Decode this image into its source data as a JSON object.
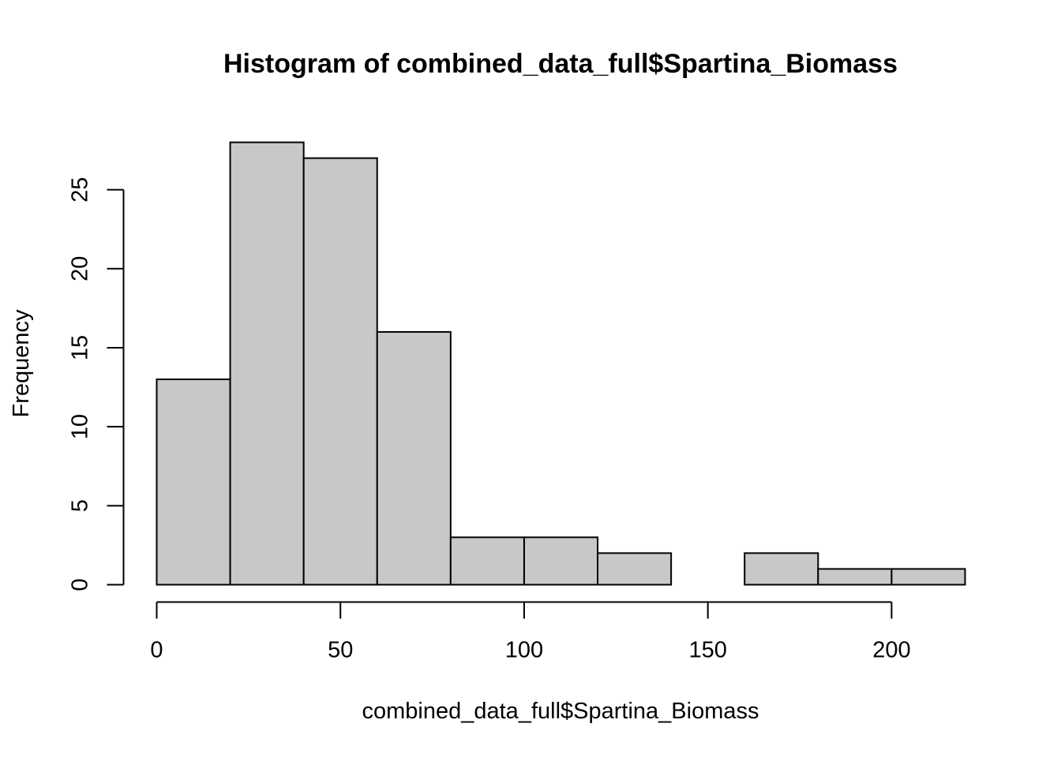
{
  "chart_data": {
    "type": "bar",
    "title": "Histogram of combined_data_full$Spartina_Biomass",
    "xlabel": "combined_data_full$Spartina_Biomass",
    "ylabel": "Frequency",
    "bins": [
      {
        "from": 0,
        "to": 20,
        "count": 13
      },
      {
        "from": 20,
        "to": 40,
        "count": 28
      },
      {
        "from": 40,
        "to": 60,
        "count": 27
      },
      {
        "from": 60,
        "to": 80,
        "count": 16
      },
      {
        "from": 80,
        "to": 100,
        "count": 3
      },
      {
        "from": 100,
        "to": 120,
        "count": 3
      },
      {
        "from": 120,
        "to": 140,
        "count": 2
      },
      {
        "from": 140,
        "to": 160,
        "count": 0
      },
      {
        "from": 160,
        "to": 180,
        "count": 2
      },
      {
        "from": 180,
        "to": 200,
        "count": 1
      },
      {
        "from": 200,
        "to": 220,
        "count": 1
      }
    ],
    "xlim": [
      0,
      220
    ],
    "ylim": [
      0,
      28
    ],
    "x_ticks": [
      0,
      50,
      100,
      150,
      200
    ],
    "y_ticks": [
      0,
      5,
      10,
      15,
      20,
      25
    ],
    "grid": false,
    "legend": "none",
    "bar_color": "#c8c8c8",
    "edge_color": "#000000"
  }
}
